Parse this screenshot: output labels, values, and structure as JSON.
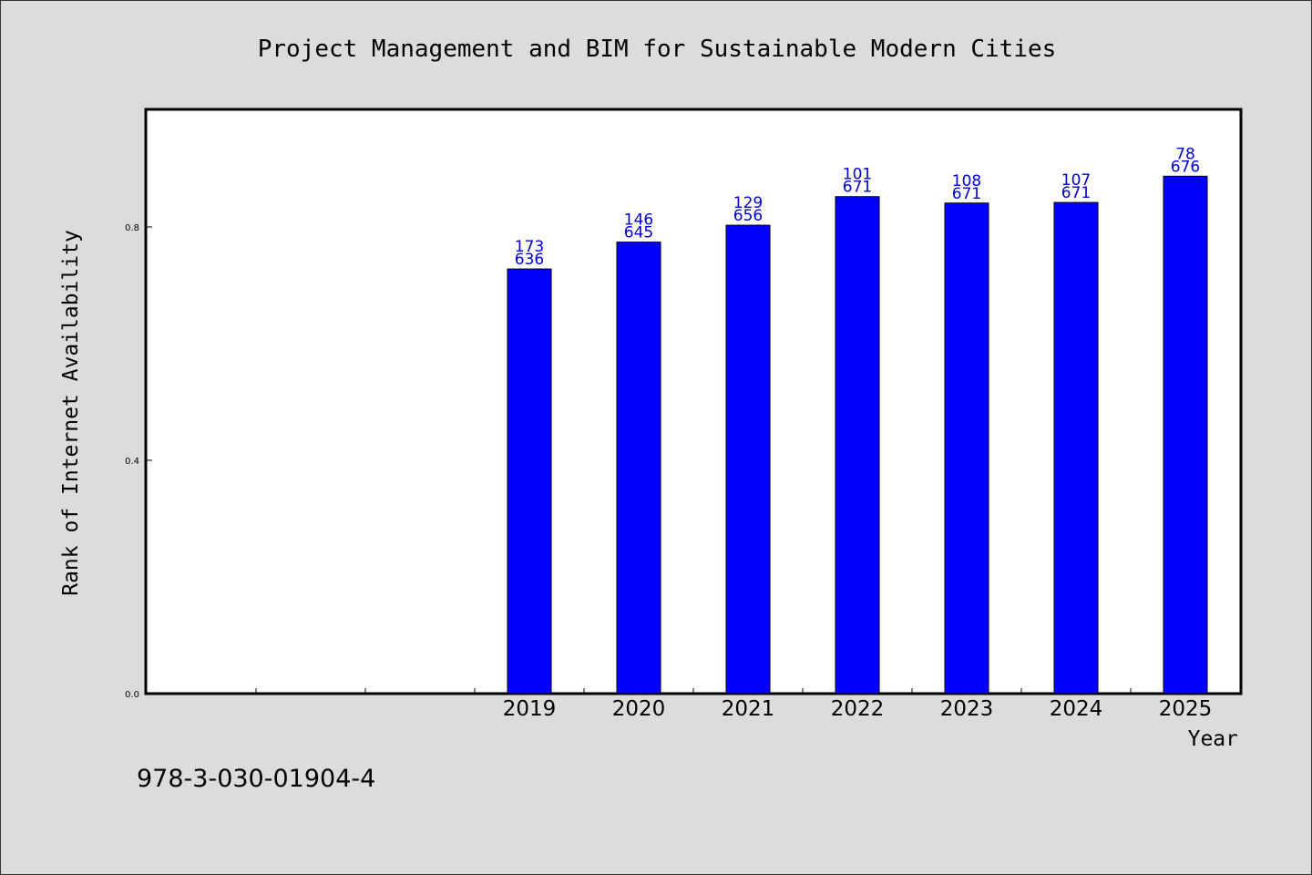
{
  "chart_data": {
    "type": "bar",
    "title": "Project Management and BIM for Sustainable Modern Cities",
    "xlabel": "Year",
    "ylabel": "Rank of Internet Availability",
    "footer_text": "978-3-030-01904-4",
    "categories": [
      "",
      "",
      "",
      "2019",
      "2020",
      "2021",
      "2022",
      "2023",
      "2024",
      "2025"
    ],
    "values": [
      null,
      null,
      null,
      0.728,
      0.774,
      0.803,
      0.852,
      0.841,
      0.842,
      0.887
    ],
    "bar_labels": [
      null,
      null,
      null,
      [
        "173",
        "636"
      ],
      [
        "146",
        "645"
      ],
      [
        "129",
        "656"
      ],
      [
        "101",
        "671"
      ],
      [
        "108",
        "671"
      ],
      [
        "107",
        "671"
      ],
      [
        "78",
        "676"
      ]
    ],
    "yticks": [
      0.0,
      0.4,
      0.8
    ],
    "ytick_labels": [
      "0.0",
      "0.4",
      "0.8"
    ],
    "ylim": [
      0,
      1.0
    ],
    "grid": false,
    "legend": "none",
    "colors": {
      "bar": "#0000ff",
      "bar_label": "#0000cc",
      "background": "#dcdcdc",
      "plot_background": "#ffffff",
      "axis": "#000000"
    }
  }
}
